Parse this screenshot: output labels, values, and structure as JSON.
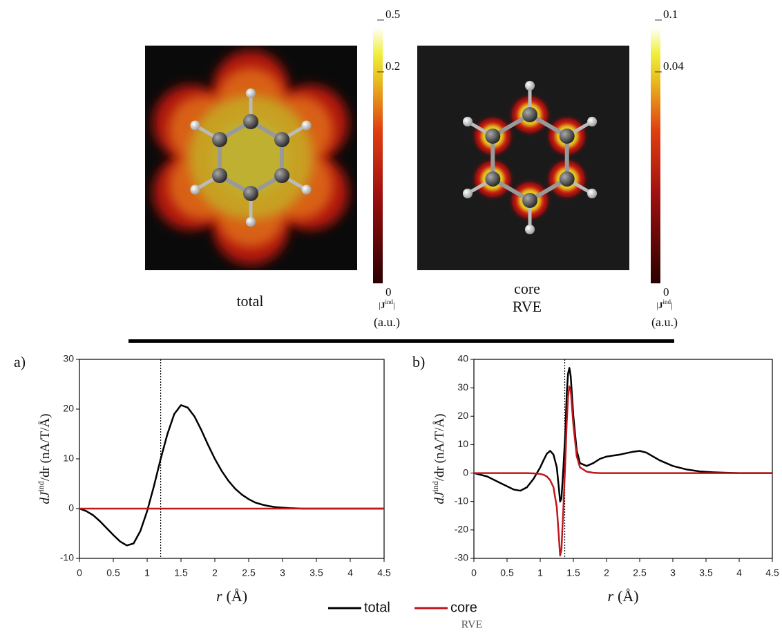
{
  "maps": [
    {
      "label": "total",
      "colorbar": {
        "ticks": [
          "0.5",
          "0.2",
          "0"
        ],
        "label": {
          "pre": "|",
          "bold": "J",
          "sup": "ind",
          "post": "|"
        },
        "unit": "(a.u.)"
      }
    },
    {
      "label": "core",
      "sublabel": "RVE",
      "colorbar": {
        "ticks": [
          "0.1",
          "0.04",
          "0"
        ],
        "label": {
          "pre": "|",
          "bold": "J",
          "sup": "ind",
          "post": "|"
        },
        "unit": "(a.u.)"
      }
    }
  ],
  "legend_note": "RVE",
  "chart_data": [
    {
      "type": "line",
      "panel": "a)",
      "x_label": {
        "var": "r",
        "unit": "(Å)"
      },
      "y_label": {
        "pre": "dJ",
        "sup": "ind",
        "post": "/dr (nA/T/Å)"
      },
      "x": [
        0,
        0.1,
        0.2,
        0.3,
        0.4,
        0.5,
        0.6,
        0.7,
        0.8,
        0.9,
        1.0,
        1.1,
        1.2,
        1.3,
        1.4,
        1.5,
        1.6,
        1.7,
        1.8,
        1.9,
        2.0,
        2.1,
        2.2,
        2.3,
        2.4,
        2.5,
        2.6,
        2.7,
        2.8,
        2.9,
        3.0,
        3.1,
        3.2,
        3.3,
        3.4,
        3.5,
        3.6,
        3.7,
        3.8,
        3.9,
        4.0,
        4.1,
        4.2,
        4.3,
        4.4,
        4.5
      ],
      "series": [
        {
          "name": "total",
          "color": "#000000",
          "values": [
            0,
            -0.5,
            -1.3,
            -2.5,
            -3.9,
            -5.3,
            -6.6,
            -7.4,
            -7.0,
            -4.5,
            -0.5,
            4.5,
            10.0,
            15.0,
            19.0,
            20.8,
            20.3,
            18.5,
            15.8,
            12.8,
            10.0,
            7.6,
            5.6,
            4.0,
            2.8,
            1.9,
            1.2,
            0.8,
            0.5,
            0.3,
            0.2,
            0.1,
            0.05,
            0,
            0,
            0,
            0,
            0,
            0,
            0,
            0,
            0,
            0,
            0,
            0,
            0
          ]
        },
        {
          "name": "core",
          "color": "#c0171c",
          "values": [
            0,
            0,
            0,
            0,
            0,
            0,
            0,
            0,
            0,
            0,
            0,
            0,
            0,
            0,
            0,
            0,
            0,
            0,
            0,
            0,
            0,
            0,
            0,
            0,
            0,
            0,
            0,
            0,
            0,
            0,
            0,
            0,
            0,
            0,
            0,
            0,
            0,
            0,
            0,
            0,
            0,
            0,
            0,
            0,
            0,
            0
          ]
        }
      ],
      "vline": 1.2,
      "xlim": [
        0,
        4.5
      ],
      "xticks": [
        0,
        0.5,
        1,
        1.5,
        2,
        2.5,
        3,
        3.5,
        4,
        4.5
      ],
      "ylim": [
        -10,
        30
      ],
      "yticks": [
        -10,
        0,
        10,
        20,
        30
      ]
    },
    {
      "type": "line",
      "panel": "b)",
      "x_label": {
        "var": "r",
        "unit": "(Å)"
      },
      "y_label": {
        "pre": "dJ",
        "sup": "ind",
        "post": "/dr (nA/T/Å)"
      },
      "x": [
        0,
        0.2,
        0.4,
        0.6,
        0.7,
        0.8,
        0.9,
        1.0,
        1.05,
        1.1,
        1.15,
        1.2,
        1.25,
        1.28,
        1.3,
        1.32,
        1.35,
        1.38,
        1.4,
        1.42,
        1.44,
        1.46,
        1.5,
        1.55,
        1.6,
        1.7,
        1.8,
        1.9,
        2.0,
        2.2,
        2.4,
        2.5,
        2.6,
        2.8,
        3.0,
        3.2,
        3.4,
        3.6,
        3.8,
        4.0,
        4.5
      ],
      "series": [
        {
          "name": "total",
          "color": "#000000",
          "values": [
            0,
            -1.2,
            -3.5,
            -5.8,
            -6.2,
            -5.0,
            -2.0,
            2.0,
            4.5,
            6.8,
            7.8,
            6.5,
            2.0,
            -5.0,
            -10.0,
            -9.0,
            2.0,
            15.0,
            28.0,
            35.0,
            37.0,
            34.0,
            20.0,
            8.0,
            3.5,
            2.5,
            3.5,
            5.0,
            5.8,
            6.5,
            7.5,
            7.8,
            7.2,
            4.5,
            2.5,
            1.3,
            0.6,
            0.3,
            0.1,
            0,
            0
          ]
        },
        {
          "name": "core",
          "color": "#c0171c",
          "values": [
            0,
            0,
            0,
            0,
            0,
            0,
            -0.1,
            -0.3,
            -0.6,
            -1.2,
            -2.5,
            -5.0,
            -12.0,
            -22.0,
            -29.0,
            -27.0,
            -12.0,
            5.0,
            18.0,
            27.0,
            30.5,
            29.0,
            17.0,
            6.0,
            2.0,
            0.5,
            0.1,
            0,
            0,
            0,
            0,
            0,
            0,
            0,
            0,
            0,
            0,
            0,
            0,
            0,
            0
          ]
        }
      ],
      "vline": 1.37,
      "xlim": [
        0,
        4.5
      ],
      "xticks": [
        0,
        0.5,
        1,
        1.5,
        2,
        2.5,
        3,
        3.5,
        4,
        4.5
      ],
      "ylim": [
        -30,
        40
      ],
      "yticks": [
        -30,
        -20,
        -10,
        0,
        10,
        20,
        30,
        40
      ]
    }
  ]
}
